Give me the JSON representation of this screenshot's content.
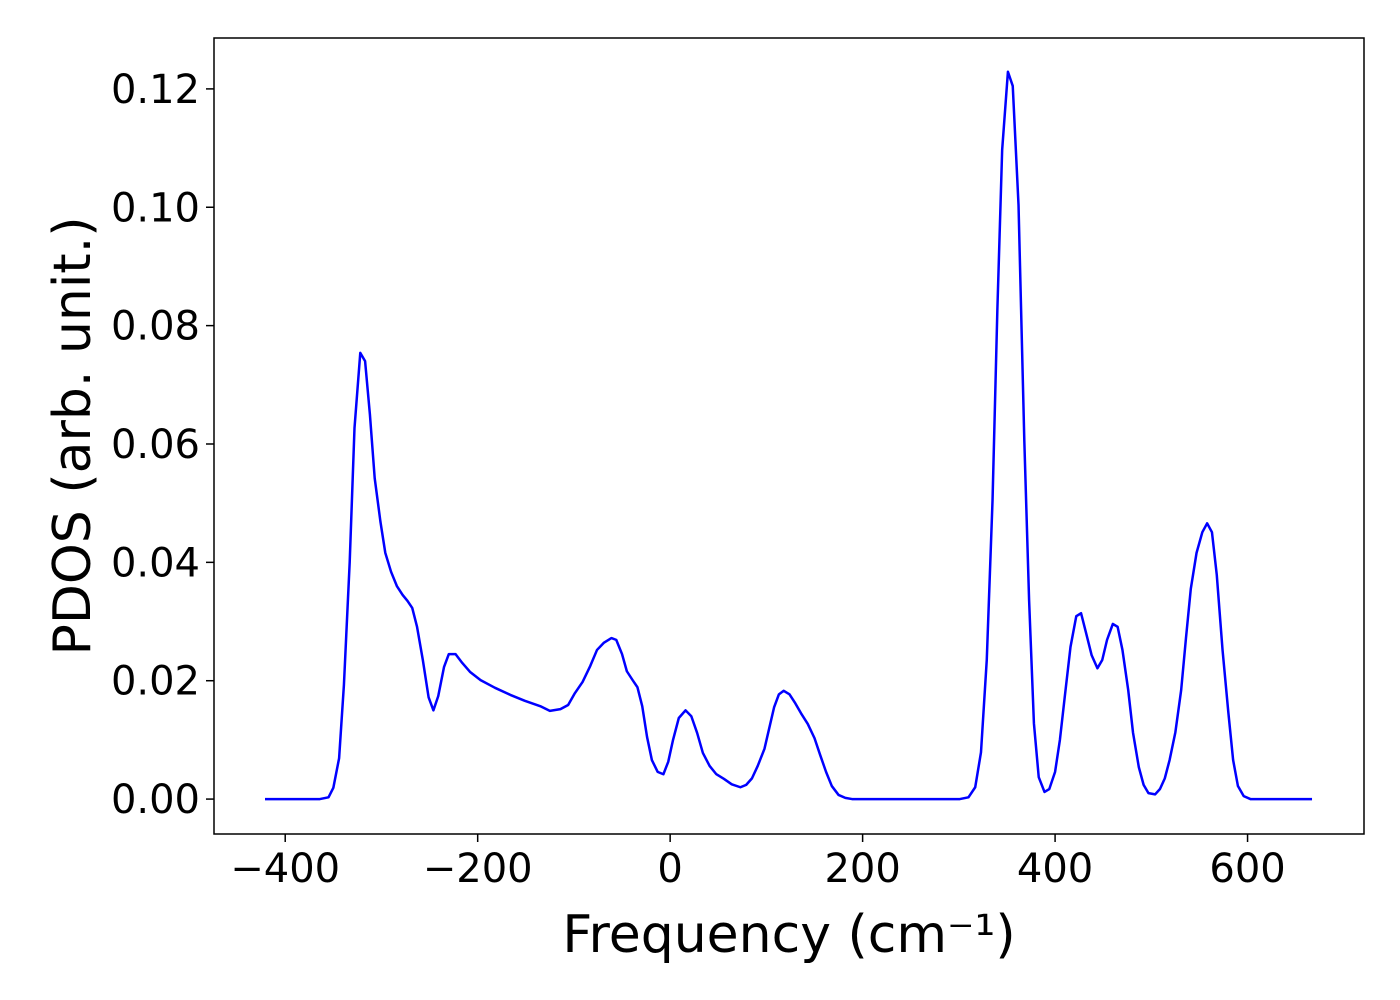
{
  "chart_data": {
    "type": "line",
    "xlabel": "Frequency (cm⁻¹)",
    "ylabel": "PDOS (arb. unit.)",
    "color": "blue",
    "xlim": [
      -474,
      721
    ],
    "ylim": [
      -0.0059,
      0.1286
    ],
    "xticks": [
      {
        "value": -400,
        "label": "−400"
      },
      {
        "value": -200,
        "label": "−200"
      },
      0,
      200,
      400,
      600
    ],
    "yticks": [
      {
        "value": 0,
        "label": "0.00"
      },
      {
        "value": 0.02,
        "label": "0.02"
      },
      {
        "value": 0.04,
        "label": "0.04"
      },
      {
        "value": 0.06,
        "label": "0.06"
      },
      {
        "value": 0.08,
        "label": "0.08"
      },
      {
        "value": 0.1,
        "label": "0.10"
      },
      {
        "value": 0.12,
        "label": "0.12"
      }
    ],
    "x": [
      -421,
      -364,
      -355,
      -350,
      -344,
      -339,
      -333,
      -328,
      -322,
      -317,
      -312,
      -307,
      -301,
      -296,
      -290,
      -284,
      -278,
      -273,
      -268,
      -263,
      -257,
      -251,
      -246,
      -241,
      -235,
      -230,
      -223,
      -216,
      -208,
      -197,
      -182,
      -166,
      -151,
      -135,
      -125,
      -114,
      -106,
      -99,
      -91,
      -83,
      -76,
      -69,
      -61,
      -56,
      -50,
      -45,
      -39,
      -34,
      -29,
      -24,
      -19,
      -13,
      -7,
      -2,
      3,
      9,
      16,
      22,
      28,
      34,
      41,
      48,
      56,
      64,
      73,
      79,
      85,
      91,
      98,
      103,
      108,
      113,
      118,
      124,
      130,
      136,
      143,
      150,
      156,
      162,
      168,
      175,
      182,
      189,
      301,
      310,
      317,
      323,
      329,
      335,
      340,
      345,
      351,
      356,
      362,
      368,
      373,
      378,
      383,
      389,
      394,
      400,
      405,
      410,
      416,
      422,
      427,
      432,
      438,
      444,
      449,
      454,
      460,
      465,
      470,
      476,
      481,
      487,
      492,
      497,
      504,
      509,
      514,
      519,
      525,
      531,
      536,
      541,
      547,
      553,
      558,
      563,
      568,
      574,
      580,
      585,
      590,
      596,
      603,
      667
    ],
    "values": [
      0,
      0,
      0.0003,
      0.0019,
      0.0069,
      0.0193,
      0.04,
      0.0627,
      0.0754,
      0.074,
      0.065,
      0.0542,
      0.0468,
      0.0416,
      0.0384,
      0.036,
      0.0345,
      0.0335,
      0.0323,
      0.0291,
      0.0235,
      0.0172,
      0.015,
      0.0174,
      0.0223,
      0.0245,
      0.0245,
      0.023,
      0.0215,
      0.0201,
      0.0188,
      0.0176,
      0.0166,
      0.0157,
      0.0149,
      0.0152,
      0.0159,
      0.0179,
      0.0198,
      0.0225,
      0.0252,
      0.0264,
      0.0272,
      0.0269,
      0.0245,
      0.0216,
      0.0201,
      0.0189,
      0.0157,
      0.0105,
      0.0066,
      0.0046,
      0.0042,
      0.0063,
      0.01,
      0.0137,
      0.015,
      0.014,
      0.0112,
      0.0078,
      0.0056,
      0.0042,
      0.0034,
      0.0025,
      0.002,
      0.0024,
      0.0035,
      0.0056,
      0.0085,
      0.012,
      0.0155,
      0.0177,
      0.0183,
      0.0177,
      0.0162,
      0.0145,
      0.0127,
      0.0103,
      0.0074,
      0.0046,
      0.0022,
      0.0007,
      0.0002,
      0,
      0,
      0.0003,
      0.002,
      0.0079,
      0.0235,
      0.0505,
      0.0826,
      0.1097,
      0.1229,
      0.1205,
      0.1004,
      0.0607,
      0.0336,
      0.0128,
      0.0037,
      0.0012,
      0.0017,
      0.0046,
      0.01,
      0.0172,
      0.0257,
      0.0309,
      0.0314,
      0.0282,
      0.0243,
      0.0221,
      0.0235,
      0.0269,
      0.0296,
      0.0291,
      0.0252,
      0.0184,
      0.0112,
      0.0054,
      0.0024,
      0.001,
      0.0008,
      0.0017,
      0.0035,
      0.0066,
      0.0113,
      0.0184,
      0.0272,
      0.0355,
      0.0416,
      0.0451,
      0.0466,
      0.0451,
      0.0379,
      0.0252,
      0.0147,
      0.0066,
      0.0022,
      0.0005,
      0,
      0
    ]
  }
}
